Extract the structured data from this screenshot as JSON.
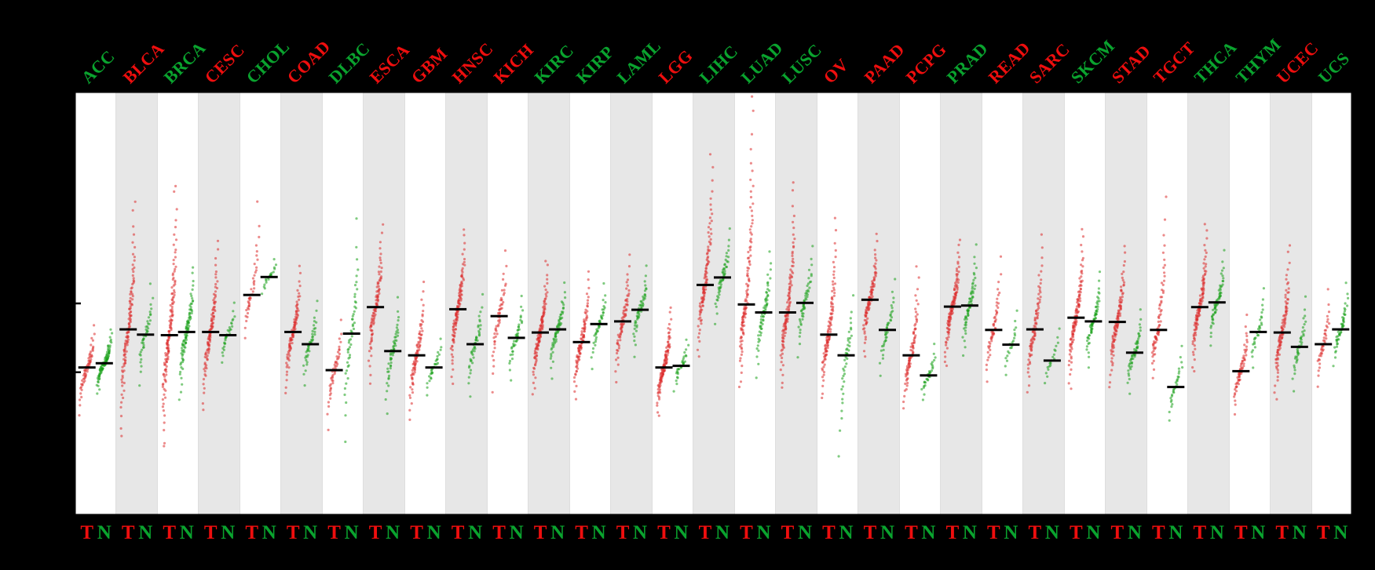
{
  "figure": {
    "background": "#000000",
    "plot_background": "#ffffff",
    "band_alt_color": "#e7e7e7"
  },
  "colors": {
    "tumor_dot": "#dd2c2c",
    "normal_dot": "#18a018",
    "median_bar": "#000000",
    "label_red": "#ee0e0e",
    "label_green": "#0aa32e",
    "axis": "#000000"
  },
  "bottom_labels": {
    "tumor": "T",
    "normal": "N"
  },
  "chart_data": {
    "type": "scatter",
    "subtype": "sorted-strip-dotplot (tumor vs normal expression per cancer type)",
    "title": "",
    "xlabel": "",
    "ylabel": "",
    "ylim": [
      0,
      8
    ],
    "yticks": [
      2.7,
      4.0
    ],
    "ytick_labels_visible": false,
    "grid": false,
    "legend_position": "none",
    "groups": [
      "T",
      "N"
    ],
    "categories": [
      {
        "name": "ACC",
        "color": "green",
        "T": {
          "m": 2.79,
          "lo": 1.9,
          "hi": 3.6,
          "n": 60
        },
        "N": {
          "m": 2.87,
          "lo": 2.3,
          "hi": 3.5,
          "n": 90
        }
      },
      {
        "name": "BLCA",
        "color": "red",
        "T": {
          "m": 3.51,
          "lo": 1.5,
          "hi": 5.9,
          "n": 110
        },
        "N": {
          "m": 3.41,
          "lo": 2.4,
          "hi": 4.4,
          "n": 40
        }
      },
      {
        "name": "BRCA",
        "color": "green",
        "T": {
          "m": 3.4,
          "lo": 1.3,
          "hi": 6.2,
          "n": 130
        },
        "N": {
          "m": 3.46,
          "lo": 2.2,
          "hi": 4.7,
          "n": 90
        }
      },
      {
        "name": "CESC",
        "color": "red",
        "T": {
          "m": 3.46,
          "lo": 2.0,
          "hi": 5.2,
          "n": 100
        },
        "N": {
          "m": 3.4,
          "lo": 2.8,
          "hi": 4.1,
          "n": 30
        }
      },
      {
        "name": "CHOL",
        "color": "green",
        "T": {
          "m": 4.16,
          "lo": 3.3,
          "hi": 6.0,
          "n": 40
        },
        "N": {
          "m": 4.5,
          "lo": 4.1,
          "hi": 4.9,
          "n": 20
        }
      },
      {
        "name": "COAD",
        "color": "red",
        "T": {
          "m": 3.46,
          "lo": 2.3,
          "hi": 4.7,
          "n": 90
        },
        "N": {
          "m": 3.23,
          "lo": 2.4,
          "hi": 4.1,
          "n": 40
        }
      },
      {
        "name": "DLBC",
        "color": "green",
        "T": {
          "m": 2.74,
          "lo": 1.6,
          "hi": 3.7,
          "n": 45
        },
        "N": {
          "m": 3.43,
          "lo": 1.4,
          "hi": 5.6,
          "n": 50
        }
      },
      {
        "name": "ESCA",
        "color": "red",
        "T": {
          "m": 3.93,
          "lo": 2.5,
          "hi": 5.5,
          "n": 90
        },
        "N": {
          "m": 3.1,
          "lo": 1.9,
          "hi": 4.1,
          "n": 50
        }
      },
      {
        "name": "GBM",
        "color": "red",
        "T": {
          "m": 3.02,
          "lo": 1.8,
          "hi": 4.4,
          "n": 80
        },
        "N": {
          "m": 2.79,
          "lo": 2.2,
          "hi": 3.4,
          "n": 30
        }
      },
      {
        "name": "HNSC",
        "color": "red",
        "T": {
          "m": 3.89,
          "lo": 2.5,
          "hi": 5.4,
          "n": 110
        },
        "N": {
          "m": 3.23,
          "lo": 2.2,
          "hi": 4.2,
          "n": 45
        }
      },
      {
        "name": "KICH",
        "color": "red",
        "T": {
          "m": 3.76,
          "lo": 2.3,
          "hi": 5.0,
          "n": 50
        },
        "N": {
          "m": 3.35,
          "lo": 2.5,
          "hi": 4.2,
          "n": 40
        }
      },
      {
        "name": "KIRC",
        "color": "green",
        "T": {
          "m": 3.45,
          "lo": 2.3,
          "hi": 4.8,
          "n": 110
        },
        "N": {
          "m": 3.51,
          "lo": 2.6,
          "hi": 4.4,
          "n": 60
        }
      },
      {
        "name": "KIRP",
        "color": "green",
        "T": {
          "m": 3.27,
          "lo": 2.2,
          "hi": 4.6,
          "n": 90
        },
        "N": {
          "m": 3.61,
          "lo": 2.7,
          "hi": 4.4,
          "n": 40
        }
      },
      {
        "name": "LAML",
        "color": "green",
        "T": {
          "m": 3.66,
          "lo": 2.5,
          "hi": 4.9,
          "n": 70
        },
        "N": {
          "m": 3.88,
          "lo": 3.0,
          "hi": 4.7,
          "n": 50
        }
      },
      {
        "name": "LGG",
        "color": "red",
        "T": {
          "m": 2.79,
          "lo": 1.9,
          "hi": 3.9,
          "n": 110
        },
        "N": {
          "m": 2.82,
          "lo": 2.3,
          "hi": 3.4,
          "n": 30
        }
      },
      {
        "name": "LIHC",
        "color": "green",
        "T": {
          "m": 4.35,
          "lo": 3.0,
          "hi": 6.8,
          "n": 100
        },
        "N": {
          "m": 4.49,
          "lo": 3.6,
          "hi": 5.4,
          "n": 50
        }
      },
      {
        "name": "LUAD",
        "color": "green",
        "T": {
          "m": 3.98,
          "lo": 2.4,
          "hi": 7.9,
          "n": 110
        },
        "N": {
          "m": 3.83,
          "lo": 2.6,
          "hi": 5.0,
          "n": 60
        }
      },
      {
        "name": "LUSC",
        "color": "green",
        "T": {
          "m": 3.83,
          "lo": 2.4,
          "hi": 6.3,
          "n": 110
        },
        "N": {
          "m": 4.01,
          "lo": 3.0,
          "hi": 5.1,
          "n": 50
        }
      },
      {
        "name": "OV",
        "color": "red",
        "T": {
          "m": 3.41,
          "lo": 2.2,
          "hi": 5.6,
          "n": 100
        },
        "N": {
          "m": 3.02,
          "lo": 1.0,
          "hi": 4.2,
          "n": 40
        }
      },
      {
        "name": "PAAD",
        "color": "red",
        "T": {
          "m": 4.07,
          "lo": 3.0,
          "hi": 5.3,
          "n": 90
        },
        "N": {
          "m": 3.5,
          "lo": 2.6,
          "hi": 4.5,
          "n": 40
        }
      },
      {
        "name": "PCPG",
        "color": "red",
        "T": {
          "m": 3.02,
          "lo": 2.0,
          "hi": 4.7,
          "n": 80
        },
        "N": {
          "m": 2.64,
          "lo": 2.1,
          "hi": 3.3,
          "n": 30
        }
      },
      {
        "name": "PRAD",
        "color": "green",
        "T": {
          "m": 3.94,
          "lo": 2.8,
          "hi": 5.2,
          "n": 110
        },
        "N": {
          "m": 3.96,
          "lo": 3.0,
          "hi": 5.1,
          "n": 60
        }
      },
      {
        "name": "READ",
        "color": "red",
        "T": {
          "m": 3.5,
          "lo": 2.5,
          "hi": 4.9,
          "n": 50
        },
        "N": {
          "m": 3.22,
          "lo": 2.5,
          "hi": 4.0,
          "n": 20
        }
      },
      {
        "name": "SARC",
        "color": "red",
        "T": {
          "m": 3.51,
          "lo": 2.3,
          "hi": 5.3,
          "n": 80
        },
        "N": {
          "m": 2.92,
          "lo": 2.4,
          "hi": 3.7,
          "n": 20
        }
      },
      {
        "name": "SKCM",
        "color": "green",
        "T": {
          "m": 3.73,
          "lo": 2.4,
          "hi": 5.4,
          "n": 110
        },
        "N": {
          "m": 3.66,
          "lo": 2.8,
          "hi": 4.6,
          "n": 60
        }
      },
      {
        "name": "STAD",
        "color": "red",
        "T": {
          "m": 3.65,
          "lo": 2.4,
          "hi": 5.1,
          "n": 100
        },
        "N": {
          "m": 3.07,
          "lo": 2.3,
          "hi": 3.9,
          "n": 50
        }
      },
      {
        "name": "TGCT",
        "color": "red",
        "T": {
          "m": 3.5,
          "lo": 2.6,
          "hi": 6.0,
          "n": 70
        },
        "N": {
          "m": 2.42,
          "lo": 1.7,
          "hi": 3.3,
          "n": 30
        }
      },
      {
        "name": "THCA",
        "color": "green",
        "T": {
          "m": 3.93,
          "lo": 2.7,
          "hi": 5.5,
          "n": 110
        },
        "N": {
          "m": 4.02,
          "lo": 3.2,
          "hi": 5.0,
          "n": 60
        }
      },
      {
        "name": "THYM",
        "color": "green",
        "T": {
          "m": 2.72,
          "lo": 1.9,
          "hi": 3.8,
          "n": 60
        },
        "N": {
          "m": 3.46,
          "lo": 2.7,
          "hi": 4.4,
          "n": 30
        }
      },
      {
        "name": "UCEC",
        "color": "red",
        "T": {
          "m": 3.45,
          "lo": 2.2,
          "hi": 5.1,
          "n": 100
        },
        "N": {
          "m": 3.18,
          "lo": 2.3,
          "hi": 4.2,
          "n": 40
        }
      },
      {
        "name": "UCS",
        "color": "green",
        "T": {
          "m": 3.23,
          "lo": 2.4,
          "hi": 4.3,
          "n": 40
        },
        "N": {
          "m": 3.51,
          "lo": 2.8,
          "hi": 4.4,
          "n": 50
        }
      }
    ]
  }
}
